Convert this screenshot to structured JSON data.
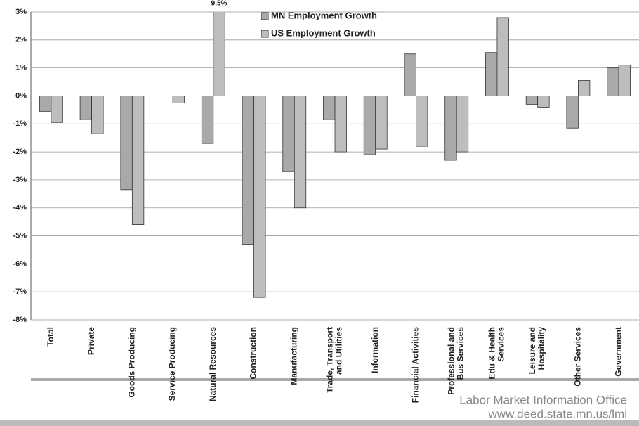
{
  "chart_data": {
    "type": "bar",
    "categories": [
      "Total",
      "Private",
      "Goods Producing",
      "Service Producing",
      "Natural Resources",
      "Construction",
      "Manufacturing",
      "Trade, Transport\nand Utilities",
      "Information",
      "Financial Activities",
      "Professional and\nBus Services",
      "Edu & Health\nServices",
      "Leisure and\nHospitality",
      "Other Services",
      "Government"
    ],
    "series": [
      {
        "name": "MN Employment Growth",
        "color": "#a9a9a9",
        "values": [
          -0.55,
          -0.85,
          -3.35,
          0,
          -1.7,
          -5.3,
          -2.7,
          -0.85,
          -2.1,
          1.5,
          -2.3,
          1.55,
          -0.3,
          -1.15,
          1.0
        ]
      },
      {
        "name": "US Employment Growth",
        "color": "#bdbdbd",
        "values": [
          -0.95,
          -1.35,
          -4.6,
          -0.25,
          9.5,
          -7.2,
          -4.0,
          -2.0,
          -1.9,
          -1.8,
          -2.0,
          2.8,
          -0.4,
          0.55,
          1.1
        ],
        "value_labels": [
          null,
          null,
          null,
          null,
          "9.5%",
          null,
          null,
          null,
          null,
          null,
          null,
          null,
          null,
          null,
          null
        ]
      }
    ],
    "ylim": [
      -8,
      3
    ],
    "yticks": [
      {
        "value": 3,
        "label": "3%"
      },
      {
        "value": 2,
        "label": "2%"
      },
      {
        "value": 1,
        "label": "1%"
      },
      {
        "value": 0,
        "label": "0%"
      },
      {
        "value": -1,
        "label": "-1%"
      },
      {
        "value": -2,
        "label": "-2%"
      },
      {
        "value": -3,
        "label": "-3%"
      },
      {
        "value": -4,
        "label": "-4%"
      },
      {
        "value": -5,
        "label": "-5%"
      },
      {
        "value": -6,
        "label": "-6%"
      },
      {
        "value": -7,
        "label": "-7%"
      },
      {
        "value": -8,
        "label": "-8%"
      }
    ],
    "grid": true,
    "source": [
      "Labor Market Information Office",
      "www.deed.state.mn.us/lmi"
    ]
  }
}
